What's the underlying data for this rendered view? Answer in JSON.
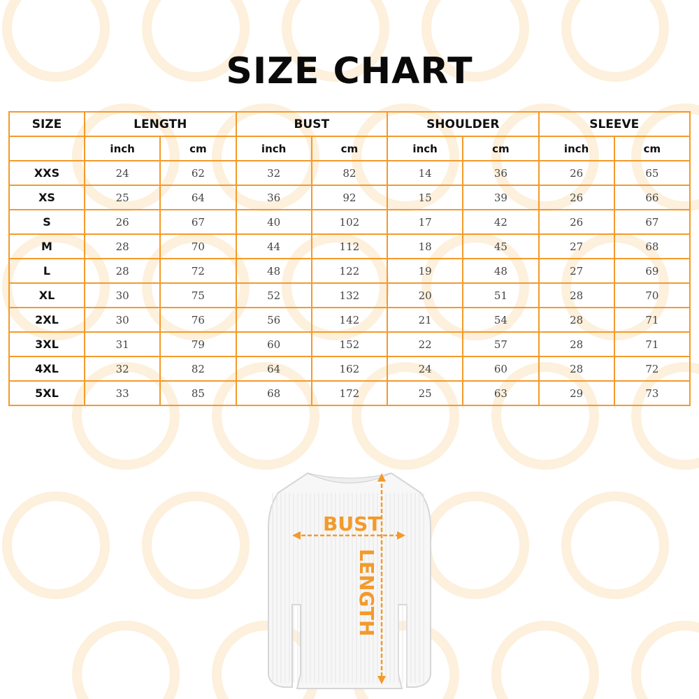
{
  "title": "SIZE CHART",
  "colors": {
    "accent": "#f39a2b",
    "text": "#111111"
  },
  "table": {
    "size_header": "SIZE",
    "groups": [
      "LENGTH",
      "BUST",
      "SHOULDER",
      "SLEEVE"
    ],
    "units": [
      "inch",
      "cm",
      "inch",
      "cm",
      "inch",
      "cm",
      "inch",
      "cm"
    ],
    "rows": [
      {
        "size": "XXS",
        "values": [
          "24",
          "62",
          "32",
          "82",
          "14",
          "36",
          "26",
          "65"
        ]
      },
      {
        "size": "XS",
        "values": [
          "25",
          "64",
          "36",
          "92",
          "15",
          "39",
          "26",
          "66"
        ]
      },
      {
        "size": "S",
        "values": [
          "26",
          "67",
          "40",
          "102",
          "17",
          "42",
          "26",
          "67"
        ]
      },
      {
        "size": "M",
        "values": [
          "28",
          "70",
          "44",
          "112",
          "18",
          "45",
          "27",
          "68"
        ]
      },
      {
        "size": "L",
        "values": [
          "28",
          "72",
          "48",
          "122",
          "19",
          "48",
          "27",
          "69"
        ]
      },
      {
        "size": "XL",
        "values": [
          "30",
          "75",
          "52",
          "132",
          "20",
          "51",
          "28",
          "70"
        ]
      },
      {
        "size": "2XL",
        "values": [
          "30",
          "76",
          "56",
          "142",
          "21",
          "54",
          "28",
          "71"
        ]
      },
      {
        "size": "3XL",
        "values": [
          "31",
          "79",
          "60",
          "152",
          "22",
          "57",
          "28",
          "71"
        ]
      },
      {
        "size": "4XL",
        "values": [
          "32",
          "82",
          "64",
          "162",
          "24",
          "60",
          "28",
          "72"
        ]
      },
      {
        "size": "5XL",
        "values": [
          "33",
          "85",
          "68",
          "172",
          "25",
          "63",
          "29",
          "73"
        ]
      }
    ]
  },
  "diagram": {
    "bust_label": "BUST",
    "length_label": "LENGTH",
    "garment": "sweater"
  }
}
